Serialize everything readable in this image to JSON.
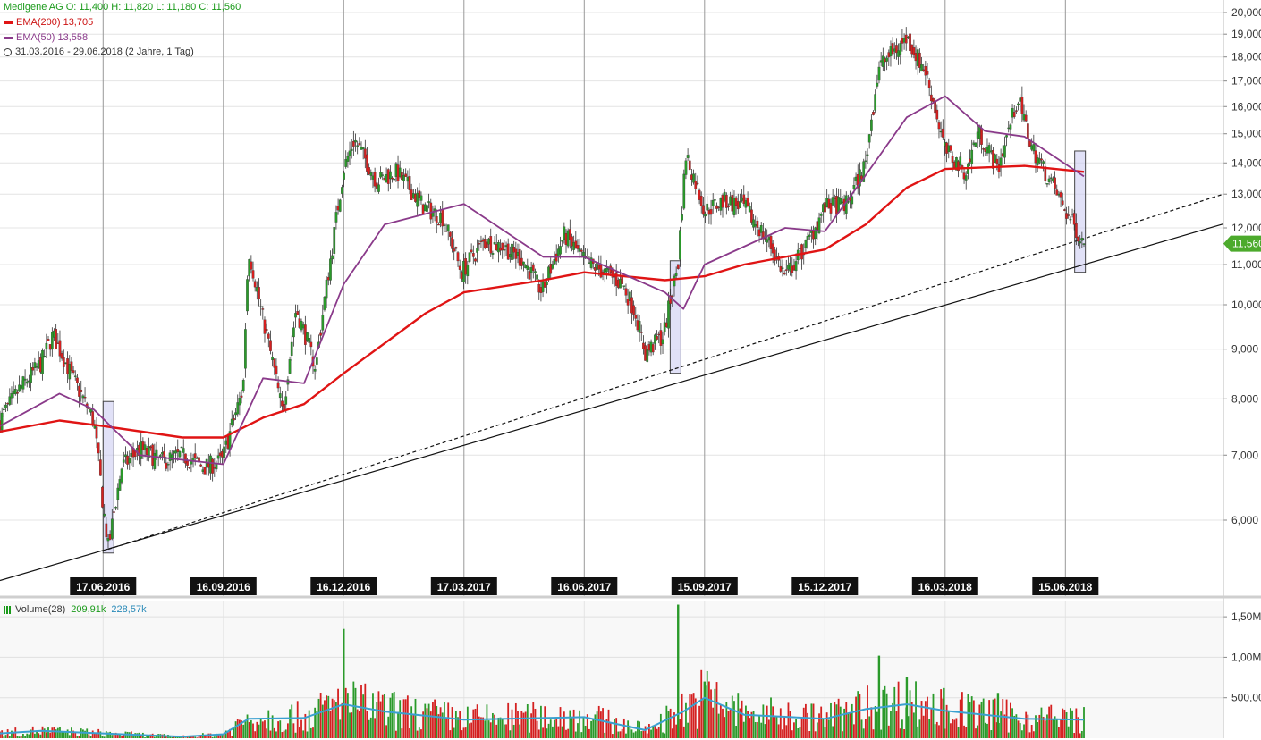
{
  "legend": {
    "ohlc": "Medigene AG  O: 11,400  H: 11,820  L: 11,180  C: 11,560",
    "ema200": "EMA(200)  13,705",
    "ema50": "EMA(50)  13,558",
    "range": "31.03.2016 - 29.06.2018   (2 Jahre, 1 Tag)",
    "volume_label": "Volume(28)",
    "volume_val1": "209,91k",
    "volume_val2": "228,57k"
  },
  "colors": {
    "up": "#2a9a2a",
    "down": "#d42020",
    "ema200": "#e01414",
    "ema50": "#8a3a8a",
    "vol_avg": "#3aa0d0",
    "highlight": "#c8c8f0",
    "price_tag": "#4caa2c"
  },
  "chart_data": [
    {
      "type": "line",
      "title": "Medigene AG",
      "y_scale": "log",
      "ylim": [
        5000,
        20000
      ],
      "y_ticks": [
        "20,000",
        "19,000",
        "18,000",
        "17,000",
        "16,000",
        "15,000",
        "14,000",
        "13,000",
        "12,000",
        "11,000",
        "10,000",
        "9,000",
        "8,000",
        "7,000",
        "6,000"
      ],
      "x_tick_labels": [
        "17.06.2016",
        "16.09.2016",
        "16.12.2016",
        "17.03.2017",
        "16.06.2017",
        "15.09.2017",
        "15.12.2017",
        "16.03.2018",
        "15.06.2018"
      ],
      "last_price_label": "11,560",
      "price_path": [
        [
          "31.03.2016",
          7.6
        ],
        [
          "15.04.2016",
          8.2
        ],
        [
          "01.05.2016",
          8.7
        ],
        [
          "10.05.2016",
          9.3
        ],
        [
          "25.05.2016",
          8.4
        ],
        [
          "10.06.2016",
          7.6
        ],
        [
          "17.06.2016",
          6.2
        ],
        [
          "21.06.2016",
          5.6
        ],
        [
          "01.07.2016",
          6.8
        ],
        [
          "15.07.2016",
          7.1
        ],
        [
          "01.08.2016",
          6.9
        ],
        [
          "15.08.2016",
          7.0
        ],
        [
          "01.09.2016",
          6.8
        ],
        [
          "15.09.2016",
          6.9
        ],
        [
          "01.10.2016",
          8.2
        ],
        [
          "05.10.2016",
          11.4
        ],
        [
          "15.10.2016",
          9.8
        ],
        [
          "31.10.2016",
          7.7
        ],
        [
          "10.11.2016",
          9.9
        ],
        [
          "25.11.2016",
          8.6
        ],
        [
          "08.12.2016",
          11.6
        ],
        [
          "16.12.2016",
          13.8
        ],
        [
          "24.12.2016",
          14.8
        ],
        [
          "10.01.2017",
          13.4
        ],
        [
          "25.01.2017",
          13.7
        ],
        [
          "15.02.2017",
          12.6
        ],
        [
          "01.03.2017",
          12.3
        ],
        [
          "15.03.2017",
          10.8
        ],
        [
          "01.04.2017",
          11.6
        ],
        [
          "15.04.2017",
          11.5
        ],
        [
          "01.05.2017",
          11.1
        ],
        [
          "15.05.2017",
          10.3
        ],
        [
          "01.06.2017",
          11.8
        ],
        [
          "16.06.2017",
          11.1
        ],
        [
          "01.07.2017",
          10.8
        ],
        [
          "15.07.2017",
          10.5
        ],
        [
          "25.07.2017",
          9.8
        ],
        [
          "01.08.2017",
          8.9
        ],
        [
          "15.08.2017",
          9.3
        ],
        [
          "26.08.2017",
          11.0
        ],
        [
          "01.09.2017",
          14.3
        ],
        [
          "15.09.2017",
          12.5
        ],
        [
          "01.10.2017",
          12.8
        ],
        [
          "15.10.2017",
          12.6
        ],
        [
          "01.11.2017",
          11.7
        ],
        [
          "15.11.2017",
          10.7
        ],
        [
          "01.12.2017",
          11.5
        ],
        [
          "15.12.2017",
          12.6
        ],
        [
          "01.01.2018",
          12.7
        ],
        [
          "15.01.2018",
          14.0
        ],
        [
          "25.01.2018",
          17.6
        ],
        [
          "15.02.2018",
          18.8
        ],
        [
          "01.03.2018",
          17.4
        ],
        [
          "16.03.2018",
          14.4
        ],
        [
          "01.04.2018",
          13.7
        ],
        [
          "10.04.2018",
          15.1
        ],
        [
          "25.04.2018",
          13.8
        ],
        [
          "10.05.2018",
          16.3
        ],
        [
          "20.05.2018",
          14.6
        ],
        [
          "01.06.2018",
          13.6
        ],
        [
          "15.06.2018",
          12.5
        ],
        [
          "29.06.2018",
          11.56
        ]
      ],
      "series": [
        {
          "name": "EMA(200)",
          "values": [
            [
              "31.03.2016",
              7.4
            ],
            [
              "15.05.2016",
              7.6
            ],
            [
              "17.06.2016",
              7.5
            ],
            [
              "16.08.2016",
              7.3
            ],
            [
              "16.09.2016",
              7.3
            ],
            [
              "16.10.2016",
              7.65
            ],
            [
              "16.11.2016",
              7.9
            ],
            [
              "16.12.2016",
              8.5
            ],
            [
              "16.02.2017",
              9.8
            ],
            [
              "17.03.2017",
              10.3
            ],
            [
              "16.05.2017",
              10.6
            ],
            [
              "16.06.2017",
              10.8
            ],
            [
              "16.08.2017",
              10.6
            ],
            [
              "15.09.2017",
              10.7
            ],
            [
              "15.10.2017",
              11.0
            ],
            [
              "15.12.2017",
              11.4
            ],
            [
              "15.01.2018",
              12.1
            ],
            [
              "15.02.2018",
              13.2
            ],
            [
              "16.03.2018",
              13.8
            ],
            [
              "15.05.2018",
              13.9
            ],
            [
              "29.06.2018",
              13.705
            ]
          ]
        },
        {
          "name": "EMA(50)",
          "values": [
            [
              "31.03.2016",
              7.5
            ],
            [
              "15.05.2016",
              8.1
            ],
            [
              "10.06.2016",
              7.8
            ],
            [
              "15.07.2016",
              7.0
            ],
            [
              "16.09.2016",
              6.85
            ],
            [
              "16.10.2016",
              8.4
            ],
            [
              "16.11.2016",
              8.3
            ],
            [
              "16.12.2016",
              10.5
            ],
            [
              "16.01.2017",
              12.1
            ],
            [
              "17.03.2017",
              12.7
            ],
            [
              "16.05.2017",
              11.2
            ],
            [
              "16.06.2017",
              11.2
            ],
            [
              "16.08.2017",
              10.3
            ],
            [
              "30.08.2017",
              9.9
            ],
            [
              "15.09.2017",
              11.0
            ],
            [
              "15.11.2017",
              12.0
            ],
            [
              "15.12.2017",
              11.9
            ],
            [
              "15.01.2018",
              13.6
            ],
            [
              "15.02.2018",
              15.6
            ],
            [
              "16.03.2018",
              16.4
            ],
            [
              "15.04.2018",
              15.1
            ],
            [
              "15.05.2018",
              14.9
            ],
            [
              "29.06.2018",
              13.558
            ]
          ]
        }
      ],
      "trendlines": [
        {
          "style": "solid",
          "from": [
            "31.03.2016",
            5.2
          ],
          "to": [
            "29.06.2018",
            11.0
          ]
        },
        {
          "style": "dashed",
          "from": [
            "21.06.2016",
            5.6
          ],
          "to": [
            "29.06.2018",
            11.7
          ]
        }
      ],
      "highlights": [
        {
          "from": [
            "17.06.2016",
            5.55
          ],
          "to": [
            "23.06.2016",
            7.95
          ]
        },
        {
          "from": [
            "20.08.2017",
            8.5
          ],
          "to": [
            "27.08.2017",
            11.1
          ]
        },
        {
          "from": [
            "22.06.2018",
            10.8
          ],
          "to": [
            "29.06.2018",
            14.4
          ]
        }
      ]
    },
    {
      "type": "bar",
      "title": "Volume(28)",
      "ylim": [
        0,
        1700000
      ],
      "y_ticks": [
        "1,50M",
        "1,00M",
        "500,00k"
      ],
      "volume_profile": [
        [
          "31.03.2016",
          60000
        ],
        [
          "01.05.2016",
          90000
        ],
        [
          "17.06.2016",
          60000
        ],
        [
          "16.08.2016",
          20000
        ],
        [
          "16.09.2016",
          50000
        ],
        [
          "05.10.2016",
          240000
        ],
        [
          "16.11.2016",
          250000
        ],
        [
          "16.12.2016",
          420000
        ],
        [
          "16.01.2017",
          330000
        ],
        [
          "17.03.2017",
          230000
        ],
        [
          "16.06.2017",
          260000
        ],
        [
          "01.08.2017",
          100000
        ],
        [
          "30.08.2017",
          330000
        ],
        [
          "15.09.2017",
          500000
        ],
        [
          "15.10.2017",
          290000
        ],
        [
          "15.12.2017",
          240000
        ],
        [
          "15.01.2018",
          360000
        ],
        [
          "15.02.2018",
          420000
        ],
        [
          "16.03.2018",
          340000
        ],
        [
          "15.05.2018",
          240000
        ],
        [
          "29.06.2018",
          228570
        ]
      ],
      "volume_spikes": [
        [
          "16.12.2016",
          1350000
        ],
        [
          "26.08.2017",
          1650000
        ],
        [
          "15.09.2017",
          700000
        ],
        [
          "25.01.2018",
          1020000
        ],
        [
          "15.02.2018",
          760000
        ],
        [
          "15.03.2018",
          620000
        ],
        [
          "25.04.2018",
          560000
        ]
      ]
    }
  ]
}
